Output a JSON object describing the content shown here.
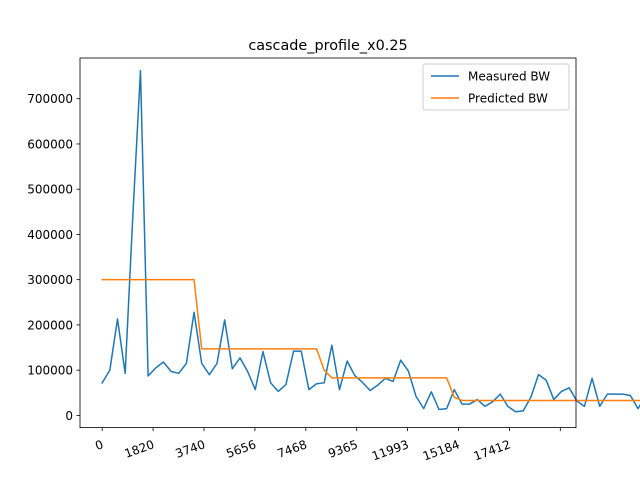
{
  "chart_data": {
    "type": "line",
    "title": "cascade_profile_x0.25",
    "xlabel": "",
    "ylabel": "",
    "x_tick_labels": [
      "0",
      "1820",
      "3740",
      "5656",
      "7468",
      "9365",
      "11993",
      "15184",
      "17412"
    ],
    "y_ticks": [
      0,
      100000,
      200000,
      300000,
      400000,
      500000,
      600000,
      700000
    ],
    "y_tick_labels": [
      "0",
      "100000",
      "200000",
      "300000",
      "400000",
      "500000",
      "600000",
      "700000"
    ],
    "ylim": [
      -27000,
      790000
    ],
    "xlim": [
      -2.9,
      61.9
    ],
    "legend_position": "upper-right",
    "grid": false,
    "series": [
      {
        "name": "Measured BW",
        "color": "#1f77b4",
        "values": [
          72000,
          100000,
          213000,
          93000,
          440000,
          762000,
          87000,
          105000,
          118000,
          97000,
          93000,
          115000,
          228000,
          115000,
          90000,
          115000,
          211000,
          103000,
          127000,
          97000,
          57000,
          141000,
          72000,
          53000,
          68000,
          142000,
          142000,
          57000,
          70000,
          72000,
          155000,
          57000,
          120000,
          88000,
          73000,
          55000,
          67000,
          82000,
          75000,
          122000,
          98000,
          42000,
          15000,
          52000,
          13000,
          15000,
          57000,
          25000,
          25000,
          35000,
          20000,
          30000,
          47000,
          20000,
          8000,
          10000,
          40000,
          90000,
          78000,
          35000,
          53000,
          61000,
          32000,
          20000,
          82000,
          20000,
          47000,
          47000,
          47000,
          44000,
          15000,
          43000
        ]
      },
      {
        "name": "Predicted BW",
        "color": "#ff7f0e",
        "values": [
          300000,
          300000,
          300000,
          300000,
          300000,
          300000,
          300000,
          300000,
          300000,
          300000,
          300000,
          300000,
          300000,
          147000,
          147000,
          147000,
          147000,
          147000,
          147000,
          147000,
          147000,
          147000,
          147000,
          147000,
          147000,
          147000,
          147000,
          147000,
          147000,
          100000,
          83000,
          83000,
          83000,
          83000,
          83000,
          83000,
          83000,
          83000,
          83000,
          83000,
          83000,
          83000,
          83000,
          83000,
          83000,
          83000,
          40000,
          33000,
          33000,
          33000,
          33000,
          33000,
          33000,
          33000,
          33000,
          33000,
          33000,
          33000,
          33000,
          33000,
          33000,
          33000,
          33000,
          33000,
          33000,
          33000,
          33000,
          33000,
          33000,
          33000,
          33000,
          33000
        ]
      }
    ]
  }
}
